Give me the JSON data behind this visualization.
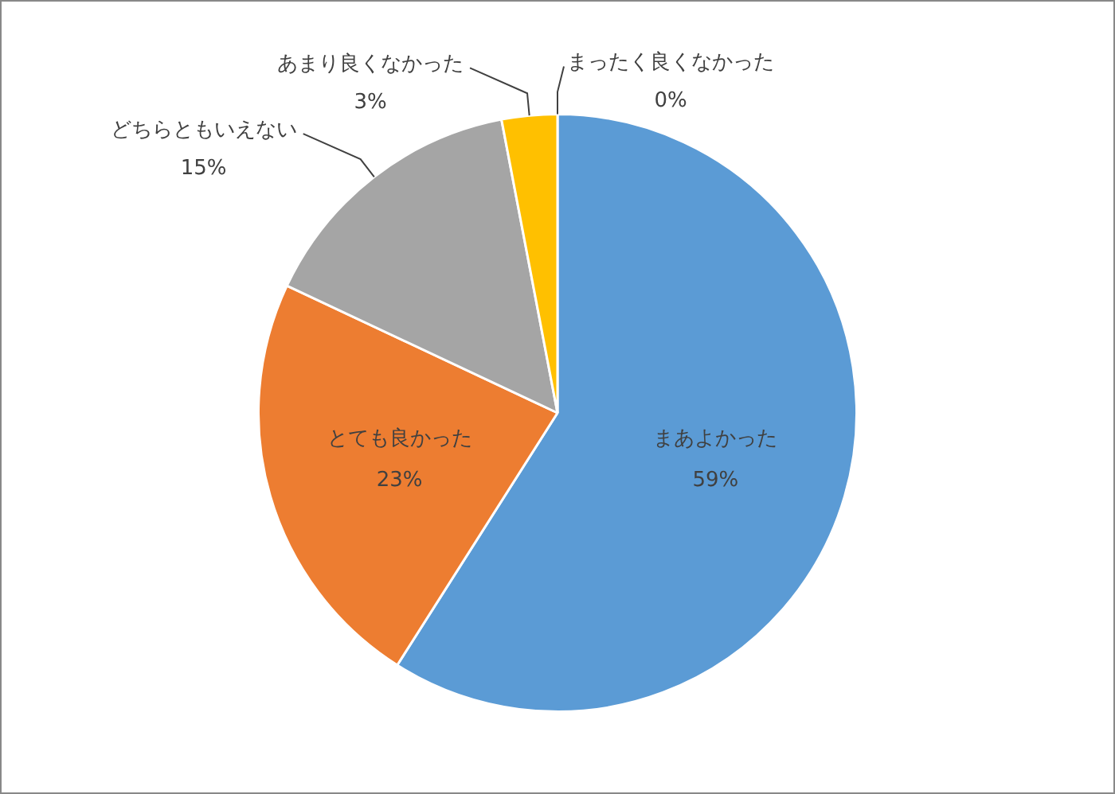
{
  "chart_data": {
    "type": "pie",
    "categories": [
      "まあよかった",
      "とても良かった",
      "どちらともいえない",
      "あまり良くなかった",
      "まったく良くなかった"
    ],
    "values": [
      59,
      23,
      15,
      3,
      0
    ],
    "value_labels": [
      "59%",
      "23%",
      "15%",
      "3%",
      "0%"
    ],
    "colors": [
      "#5b9bd5",
      "#ed7d31",
      "#a5a5a5",
      "#ffc000",
      "#4472c4"
    ],
    "legend": false
  }
}
